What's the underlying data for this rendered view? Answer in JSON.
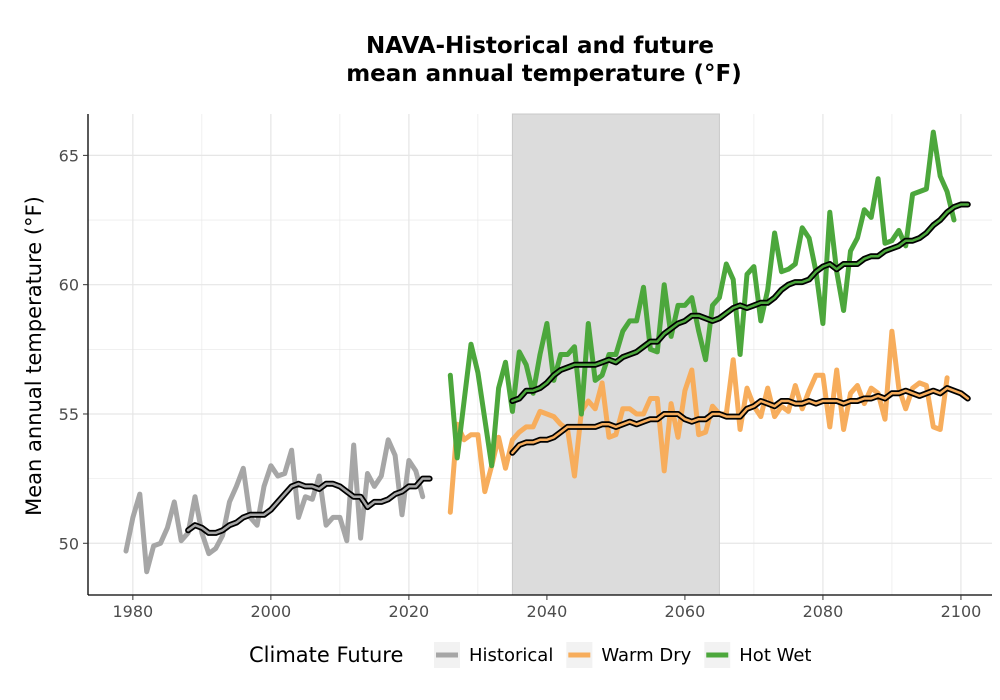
{
  "chart_data": {
    "type": "line",
    "title": "NAVA-Historical and future",
    "subtitle": "mean annual temperature (°F)",
    "xlabel": "",
    "ylabel": "Mean annual temperature (°F)",
    "xlim": [
      1973.5,
      2104.5
    ],
    "ylim": [
      48,
      66.6
    ],
    "x_ticks": [
      1980,
      2000,
      2020,
      2040,
      2060,
      2080,
      2100
    ],
    "y_ticks": [
      50,
      55,
      60,
      65
    ],
    "grid": true,
    "shaded_period": [
      2035,
      2065
    ],
    "legend_title": "Climate Future",
    "legend_position": "bottom",
    "colors": {
      "Historical": "#a6a6a6",
      "Warm Dry": "#f7ad5c",
      "Hot Wet": "#4ca73c",
      "smooth": "#000000",
      "shade": "#dcdcdc",
      "grid": "#e6e6e6"
    },
    "series": [
      {
        "name": "Historical",
        "x_start": 1979,
        "values": [
          49.7,
          51.0,
          51.9,
          48.9,
          49.9,
          50.0,
          50.6,
          51.6,
          50.1,
          50.4,
          51.8,
          50.4,
          49.6,
          49.8,
          50.3,
          51.6,
          52.2,
          52.9,
          51.0,
          50.7,
          52.2,
          53.0,
          52.6,
          52.7,
          53.6,
          51.0,
          51.8,
          51.7,
          52.6,
          50.7,
          51.0,
          51.0,
          50.1,
          53.8,
          50.2,
          52.7,
          52.2,
          52.6,
          54.0,
          53.4,
          51.1,
          53.2,
          52.8,
          51.8
        ]
      },
      {
        "name": "Warm Dry",
        "x_start": 2026,
        "values": [
          51.2,
          54.6,
          54.0,
          54.2,
          54.2,
          52.0,
          53.0,
          54.1,
          52.9,
          54.0,
          54.3,
          54.5,
          54.5,
          55.1,
          55.0,
          54.9,
          54.6,
          54.4,
          52.6,
          55.1,
          55.5,
          55.2,
          56.2,
          54.1,
          54.2,
          55.2,
          55.2,
          55.0,
          55.0,
          55.6,
          55.6,
          52.8,
          55.4,
          54.1,
          55.9,
          56.7,
          54.2,
          54.3,
          55.3,
          55.0,
          55.0,
          57.1,
          54.4,
          56.0,
          55.3,
          54.9,
          56.0,
          54.9,
          55.3,
          55.1,
          56.1,
          55.2,
          55.9,
          56.5,
          56.5,
          54.5,
          56.7,
          54.4,
          55.8,
          56.1,
          55.4,
          56.0,
          55.8,
          54.8,
          58.2,
          56.0,
          55.2,
          56.0,
          56.2,
          56.1,
          54.5,
          54.4,
          56.4
        ]
      },
      {
        "name": "Hot Wet",
        "x_start": 2026,
        "values": [
          56.5,
          53.3,
          55.5,
          57.7,
          56.6,
          54.8,
          53.0,
          56.0,
          57.0,
          55.1,
          57.4,
          56.9,
          55.8,
          57.3,
          58.5,
          56.3,
          57.3,
          57.3,
          57.6,
          55.0,
          58.5,
          56.3,
          56.5,
          57.3,
          57.3,
          58.2,
          58.6,
          58.6,
          59.9,
          57.5,
          57.4,
          60.0,
          58.0,
          59.2,
          59.2,
          59.5,
          58.2,
          57.1,
          59.2,
          59.5,
          60.8,
          60.2,
          57.3,
          60.4,
          60.7,
          58.6,
          59.8,
          62.0,
          60.5,
          60.6,
          60.8,
          62.2,
          61.8,
          60.5,
          58.5,
          62.8,
          60.5,
          59.0,
          61.3,
          61.8,
          62.9,
          62.6,
          64.1,
          61.6,
          61.7,
          62.1,
          61.5,
          63.5,
          63.6,
          63.7,
          65.9,
          64.2,
          63.6,
          62.5
        ]
      }
    ],
    "smoothed_series": [
      {
        "for": "Historical",
        "x_start": 1988,
        "values": [
          50.5,
          50.7,
          50.6,
          50.4,
          50.4,
          50.5,
          50.7,
          50.8,
          51.0,
          51.1,
          51.1,
          51.1,
          51.3,
          51.6,
          51.9,
          52.2,
          52.3,
          52.2,
          52.2,
          52.1,
          52.3,
          52.3,
          52.2,
          52.0,
          51.8,
          51.8,
          51.4,
          51.6,
          51.6,
          51.7,
          51.9,
          52.0,
          52.2,
          52.2,
          52.5,
          52.5
        ]
      },
      {
        "for": "Warm Dry",
        "x_start": 2035,
        "values": [
          53.5,
          53.8,
          53.9,
          53.9,
          54.0,
          54.0,
          54.1,
          54.3,
          54.5,
          54.5,
          54.5,
          54.5,
          54.5,
          54.6,
          54.6,
          54.5,
          54.6,
          54.7,
          54.6,
          54.7,
          54.8,
          54.8,
          55.0,
          55.0,
          55.0,
          54.8,
          54.7,
          54.8,
          54.8,
          55.0,
          55.0,
          54.9,
          54.9,
          54.9,
          55.2,
          55.3,
          55.5,
          55.4,
          55.3,
          55.5,
          55.5,
          55.4,
          55.4,
          55.5,
          55.4,
          55.5,
          55.5,
          55.5,
          55.4,
          55.5,
          55.5,
          55.6,
          55.6,
          55.7,
          55.6,
          55.8,
          55.8,
          55.9,
          55.8,
          55.7,
          55.8,
          55.9,
          55.8,
          56.0,
          55.9,
          55.8,
          55.6
        ]
      },
      {
        "for": "Hot Wet",
        "x_start": 2035,
        "values": [
          55.5,
          55.6,
          55.9,
          55.9,
          56.0,
          56.2,
          56.5,
          56.7,
          56.8,
          56.9,
          56.9,
          56.9,
          56.9,
          57.0,
          57.1,
          57.0,
          57.2,
          57.3,
          57.4,
          57.6,
          57.8,
          57.8,
          58.1,
          58.3,
          58.5,
          58.6,
          58.8,
          58.8,
          58.7,
          58.6,
          58.7,
          58.9,
          59.1,
          59.2,
          59.1,
          59.2,
          59.3,
          59.3,
          59.5,
          59.8,
          60.0,
          60.1,
          60.1,
          60.2,
          60.5,
          60.7,
          60.8,
          60.6,
          60.8,
          60.8,
          60.8,
          61.0,
          61.1,
          61.1,
          61.3,
          61.4,
          61.5,
          61.7,
          61.7,
          61.8,
          62.0,
          62.3,
          62.5,
          62.8,
          63.0,
          63.1,
          63.1
        ]
      }
    ]
  }
}
